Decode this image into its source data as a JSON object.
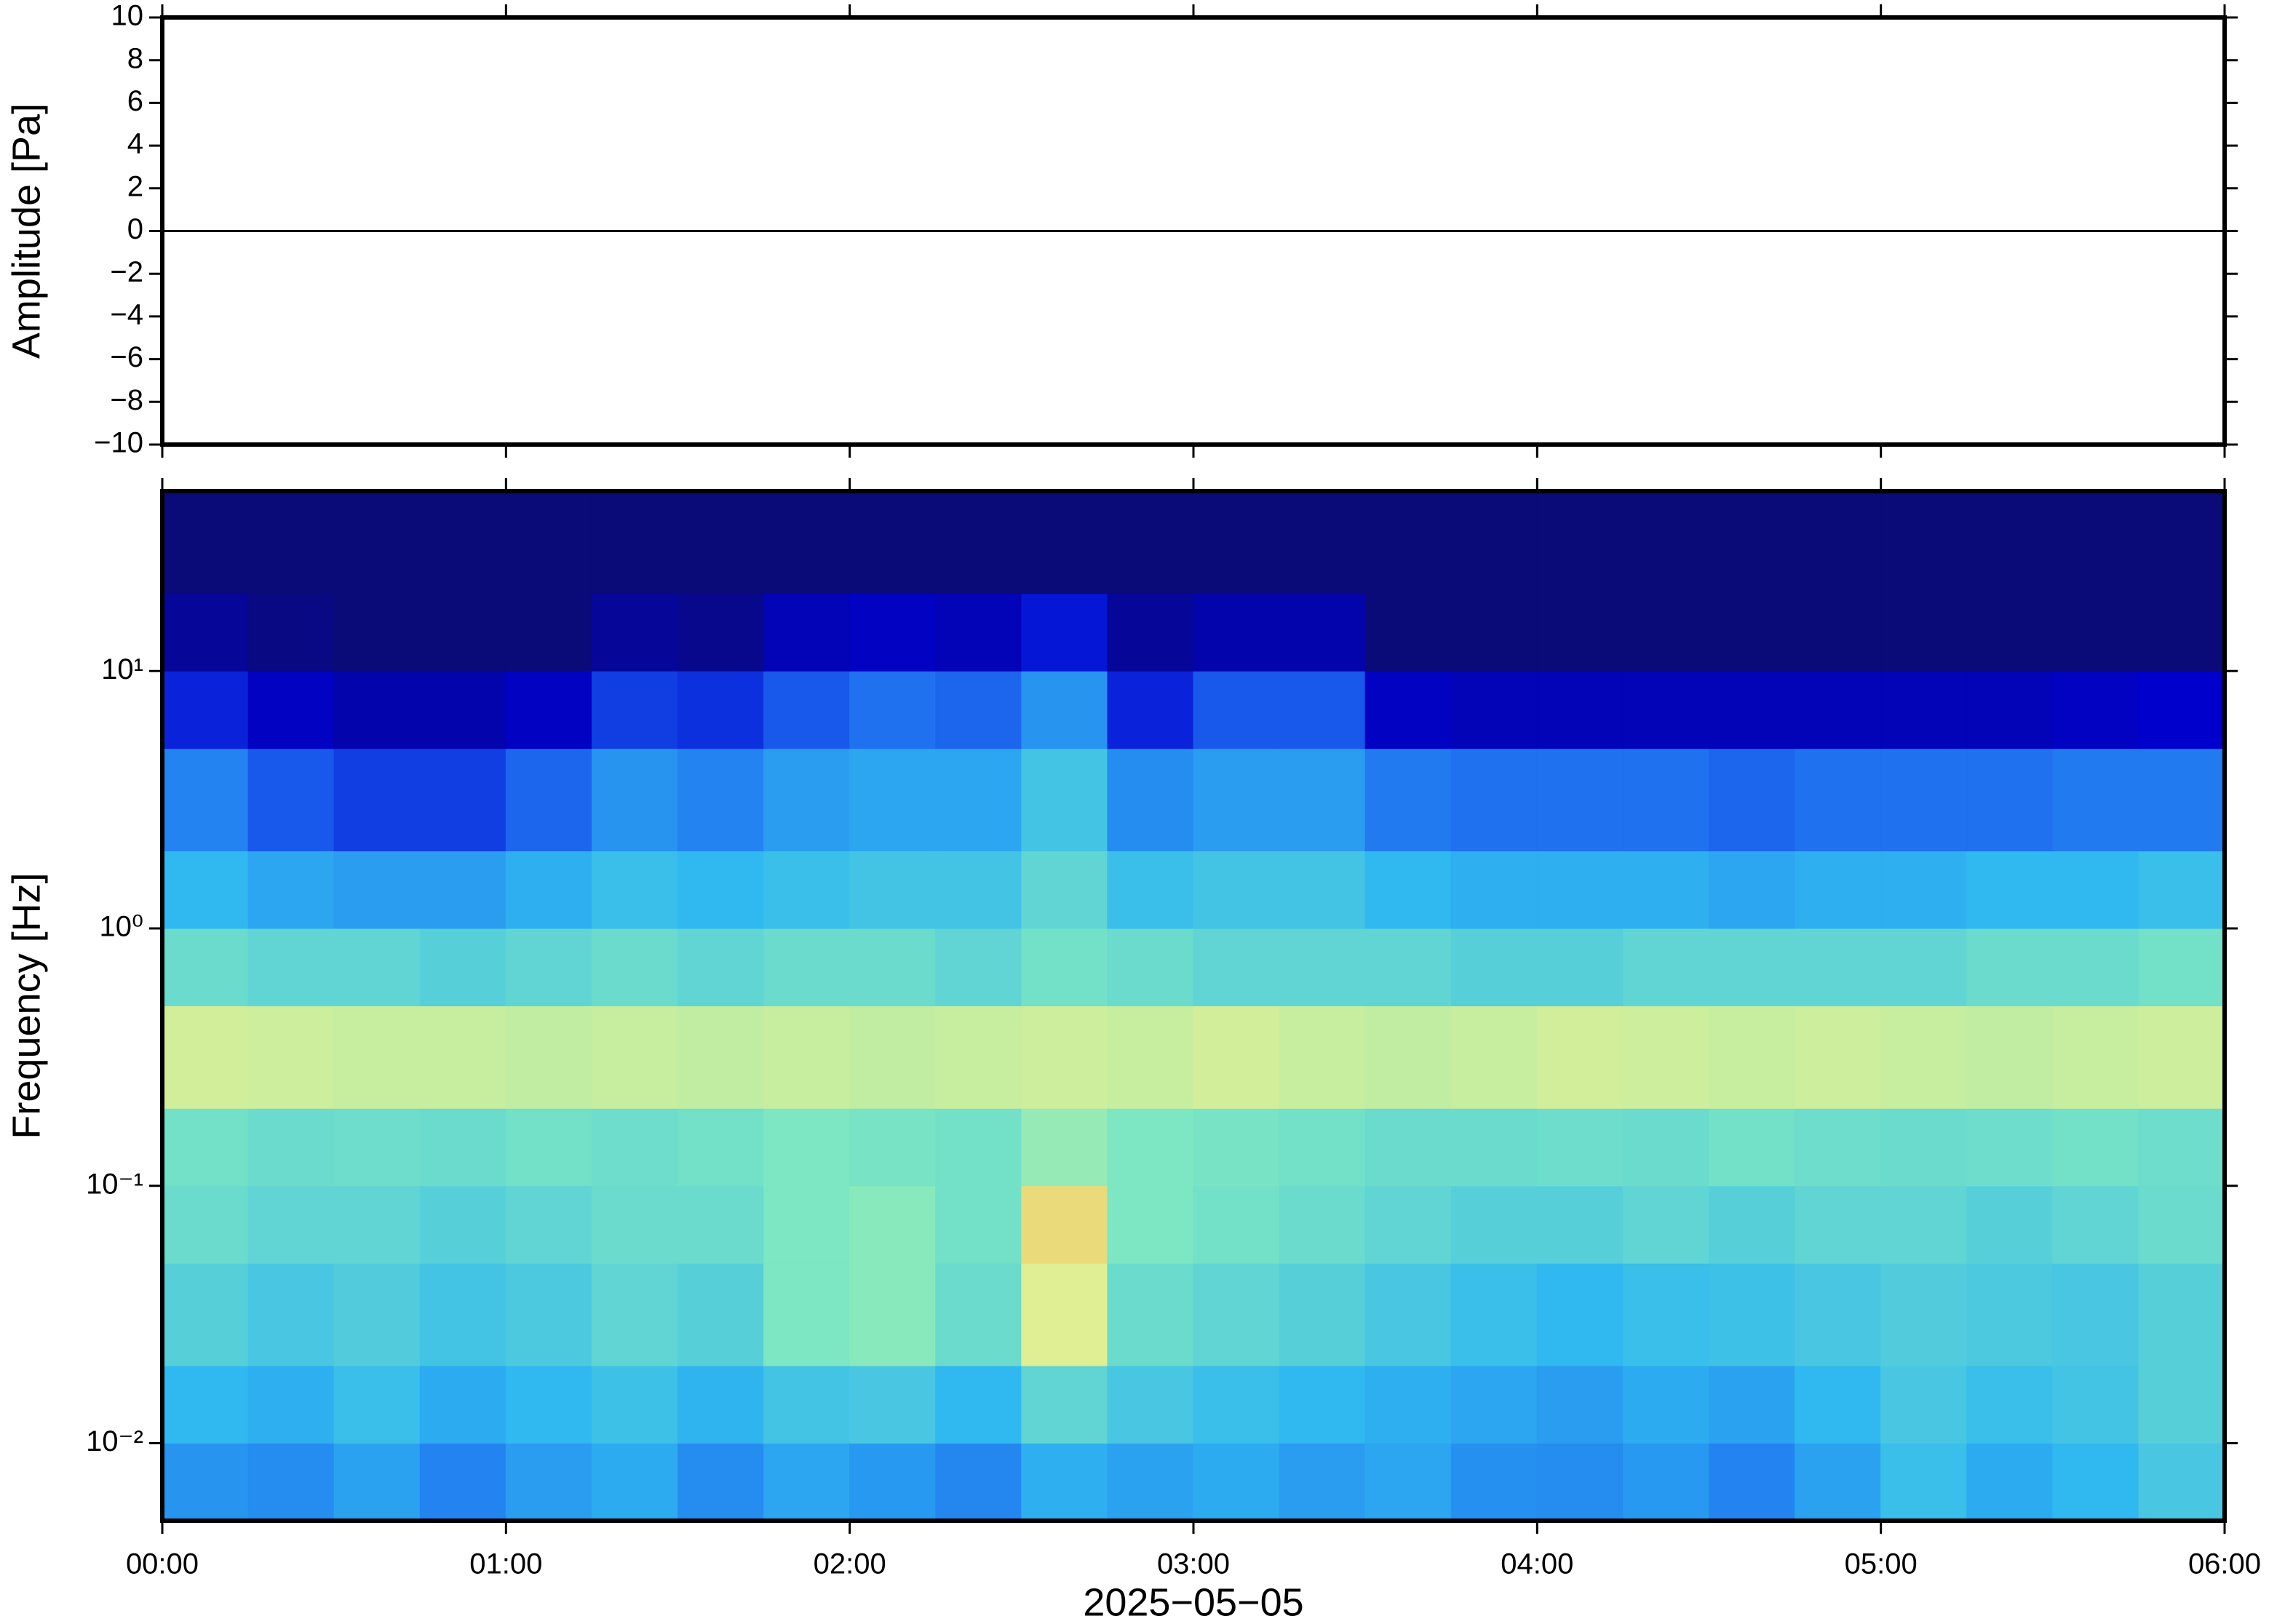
{
  "chart_data": [
    {
      "type": "line",
      "ylabel": "Amplitude [Pa]",
      "xlim": [
        0,
        360
      ],
      "ylim": [
        -10,
        10
      ],
      "yticks": [
        {
          "value": -10,
          "label": "−10"
        },
        {
          "value": -8,
          "label": "−8"
        },
        {
          "value": -6,
          "label": "−6"
        },
        {
          "value": -4,
          "label": "−4"
        },
        {
          "value": -2,
          "label": "−2"
        },
        0,
        2,
        4,
        6,
        8,
        10
      ],
      "x": [
        0,
        30,
        60,
        90,
        120,
        150,
        180,
        210,
        240,
        270,
        300,
        330,
        360
      ],
      "series": [
        {
          "color": "#000000",
          "values": [
            0,
            0,
            0,
            0,
            0,
            0,
            0,
            0,
            0,
            0,
            0,
            0,
            0
          ]
        }
      ]
    },
    {
      "type": "heatmap",
      "ylabel": "Frequency [Hz]",
      "xlabel": "2025−05−05",
      "log_y": true,
      "xlim": [
        0,
        360
      ],
      "xticks": [
        {
          "value": 0,
          "label": "00:00"
        },
        {
          "value": 60,
          "label": "01:00"
        },
        {
          "value": 120,
          "label": "02:00"
        },
        {
          "value": 180,
          "label": "03:00"
        },
        {
          "value": 240,
          "label": "04:00"
        },
        {
          "value": 300,
          "label": "05:00"
        },
        {
          "value": 360,
          "label": "06:00"
        }
      ],
      "ylim": [
        0.005,
        50
      ],
      "yticks": [
        {
          "value": 0.01,
          "label": "10⁻²"
        },
        {
          "value": 0.1,
          "label": "10⁻¹"
        },
        {
          "value": 1,
          "label": "10⁰"
        },
        {
          "value": 10,
          "label": "10¹"
        }
      ],
      "colormap": [
        "#0a0a78",
        "#0000d0",
        "#1e6ef0",
        "#30b8f0",
        "#80e8c0",
        "#e8f090",
        "#f0a040"
      ],
      "x": [
        0,
        15,
        30,
        45,
        60,
        75,
        90,
        105,
        120,
        135,
        150,
        165,
        180,
        195,
        210,
        225,
        240,
        255,
        270,
        285,
        300,
        315,
        330,
        345,
        360
      ],
      "y": [
        0.005,
        0.01,
        0.02,
        0.05,
        0.1,
        0.2,
        0.5,
        1,
        2,
        5,
        10,
        20,
        50
      ],
      "z": [
        [
          0.42,
          0.4,
          0.45,
          0.38,
          0.44,
          0.47,
          0.4,
          0.46,
          0.43,
          0.39,
          0.48,
          0.45,
          0.47,
          0.44,
          0.46,
          0.41,
          0.4,
          0.43,
          0.38,
          0.45,
          0.52,
          0.47,
          0.5,
          0.55
        ],
        [
          0.5,
          0.48,
          0.52,
          0.47,
          0.5,
          0.53,
          0.49,
          0.54,
          0.55,
          0.5,
          0.6,
          0.55,
          0.52,
          0.5,
          0.48,
          0.46,
          0.44,
          0.47,
          0.45,
          0.5,
          0.55,
          0.52,
          0.54,
          0.58
        ],
        [
          0.58,
          0.55,
          0.57,
          0.54,
          0.56,
          0.6,
          0.58,
          0.66,
          0.68,
          0.62,
          0.82,
          0.62,
          0.6,
          0.58,
          0.55,
          0.52,
          0.5,
          0.52,
          0.53,
          0.55,
          0.57,
          0.56,
          0.55,
          0.58
        ],
        [
          0.62,
          0.6,
          0.6,
          0.58,
          0.6,
          0.62,
          0.62,
          0.66,
          0.68,
          0.64,
          0.88,
          0.66,
          0.64,
          0.62,
          0.6,
          0.58,
          0.58,
          0.6,
          0.58,
          0.6,
          0.6,
          0.58,
          0.6,
          0.62
        ],
        [
          0.64,
          0.62,
          0.63,
          0.62,
          0.64,
          0.63,
          0.64,
          0.66,
          0.65,
          0.64,
          0.7,
          0.66,
          0.65,
          0.64,
          0.62,
          0.62,
          0.63,
          0.62,
          0.64,
          0.63,
          0.62,
          0.63,
          0.64,
          0.63
        ],
        [
          0.8,
          0.79,
          0.78,
          0.78,
          0.77,
          0.78,
          0.77,
          0.78,
          0.77,
          0.78,
          0.79,
          0.78,
          0.8,
          0.78,
          0.77,
          0.78,
          0.8,
          0.79,
          0.78,
          0.79,
          0.78,
          0.77,
          0.78,
          0.79
        ],
        [
          0.62,
          0.6,
          0.6,
          0.58,
          0.6,
          0.62,
          0.6,
          0.62,
          0.62,
          0.6,
          0.64,
          0.62,
          0.6,
          0.6,
          0.6,
          0.58,
          0.58,
          0.6,
          0.6,
          0.6,
          0.6,
          0.62,
          0.62,
          0.64
        ],
        [
          0.5,
          0.46,
          0.44,
          0.44,
          0.48,
          0.52,
          0.5,
          0.52,
          0.54,
          0.54,
          0.6,
          0.52,
          0.54,
          0.54,
          0.5,
          0.48,
          0.48,
          0.48,
          0.46,
          0.48,
          0.48,
          0.5,
          0.5,
          0.52
        ],
        [
          0.38,
          0.3,
          0.26,
          0.26,
          0.32,
          0.42,
          0.38,
          0.44,
          0.46,
          0.46,
          0.54,
          0.4,
          0.44,
          0.44,
          0.36,
          0.34,
          0.34,
          0.34,
          0.32,
          0.34,
          0.34,
          0.34,
          0.36,
          0.36
        ],
        [
          0.22,
          0.14,
          0.1,
          0.1,
          0.14,
          0.26,
          0.24,
          0.3,
          0.34,
          0.32,
          0.42,
          0.22,
          0.3,
          0.3,
          0.14,
          0.12,
          0.12,
          0.12,
          0.12,
          0.12,
          0.12,
          0.12,
          0.14,
          0.16
        ],
        [
          0.06,
          0.02,
          0.0,
          0.0,
          0.0,
          0.06,
          0.04,
          0.12,
          0.14,
          0.12,
          0.2,
          0.06,
          0.1,
          0.1,
          0.0,
          0.0,
          0.0,
          0.0,
          0.0,
          0.0,
          0.0,
          0.0,
          0.0,
          0.0
        ],
        [
          0,
          0,
          0,
          0,
          0,
          0,
          0,
          0,
          0,
          0,
          0,
          0,
          0,
          0,
          0,
          0,
          0,
          0,
          0,
          0,
          0,
          0,
          0,
          0
        ]
      ]
    }
  ]
}
